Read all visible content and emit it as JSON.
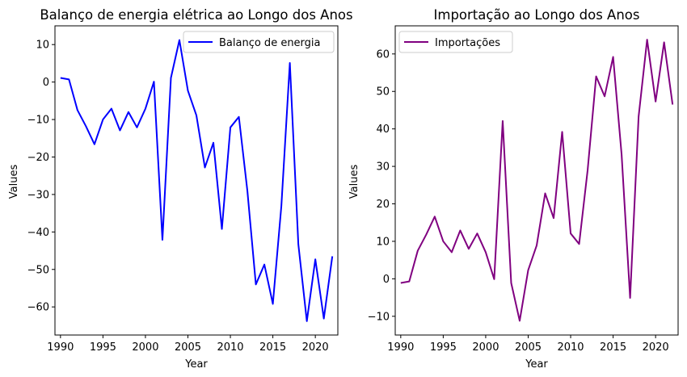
{
  "chart_data": [
    {
      "type": "line",
      "title": "Balanço de energia elétrica ao Longo dos Anos",
      "xlabel": "Year",
      "ylabel": "Values",
      "color": "#0000ff",
      "xlim": [
        1989.35,
        2022.65
      ],
      "ylim": [
        -67.5,
        15
      ],
      "xticks": [
        1990,
        1995,
        2000,
        2005,
        2010,
        2015,
        2020
      ],
      "yticks": [
        10,
        0,
        -10,
        -20,
        -30,
        -40,
        -50,
        -60
      ],
      "legend_placement": "top-right",
      "series": [
        {
          "name": "Balanço de energia",
          "x": [
            1990,
            1991,
            1992,
            1993,
            1994,
            1995,
            1996,
            1997,
            1998,
            1999,
            2000,
            2001,
            2002,
            2003,
            2004,
            2005,
            2006,
            2007,
            2008,
            2009,
            2010,
            2011,
            2012,
            2013,
            2014,
            2015,
            2016,
            2017,
            2018,
            2019,
            2020,
            2021,
            2022
          ],
          "y": [
            1.1,
            0.7,
            -7.5,
            -11.8,
            -16.6,
            -10.0,
            -7.1,
            -12.9,
            -8.0,
            -12.1,
            -7.1,
            0.1,
            -42.1,
            1.1,
            11.2,
            -2.3,
            -8.9,
            -22.8,
            -16.2,
            -39.2,
            -12.1,
            -9.3,
            -29.0,
            -54.0,
            -48.7,
            -59.2,
            -33.1,
            5.1,
            -43.3,
            -63.8,
            -47.3,
            -63.1,
            -46.5
          ]
        }
      ]
    },
    {
      "type": "line",
      "title": "Importação ao Longo dos Anos",
      "xlabel": "Year",
      "ylabel": "Values",
      "color": "#800080",
      "xlim": [
        1989.35,
        2022.65
      ],
      "ylim": [
        -15,
        67.5
      ],
      "xticks": [
        1990,
        1995,
        2000,
        2005,
        2010,
        2015,
        2020
      ],
      "yticks": [
        60,
        50,
        40,
        30,
        20,
        10,
        0,
        -10
      ],
      "legend_placement": "top-left",
      "series": [
        {
          "name": "Importações",
          "x": [
            1990,
            1991,
            1992,
            1993,
            1994,
            1995,
            1996,
            1997,
            1998,
            1999,
            2000,
            2001,
            2002,
            2003,
            2004,
            2005,
            2006,
            2007,
            2008,
            2009,
            2010,
            2011,
            2012,
            2013,
            2014,
            2015,
            2016,
            2017,
            2018,
            2019,
            2020,
            2021,
            2022
          ],
          "y": [
            -1.1,
            -0.7,
            7.5,
            11.8,
            16.6,
            10.0,
            7.1,
            12.9,
            8.0,
            12.1,
            7.1,
            -0.1,
            42.1,
            -1.1,
            -11.2,
            2.3,
            8.9,
            22.8,
            16.2,
            39.2,
            12.1,
            9.3,
            29.0,
            54.0,
            48.7,
            59.2,
            33.1,
            -5.1,
            43.3,
            63.8,
            47.3,
            63.1,
            46.5
          ]
        }
      ]
    }
  ]
}
